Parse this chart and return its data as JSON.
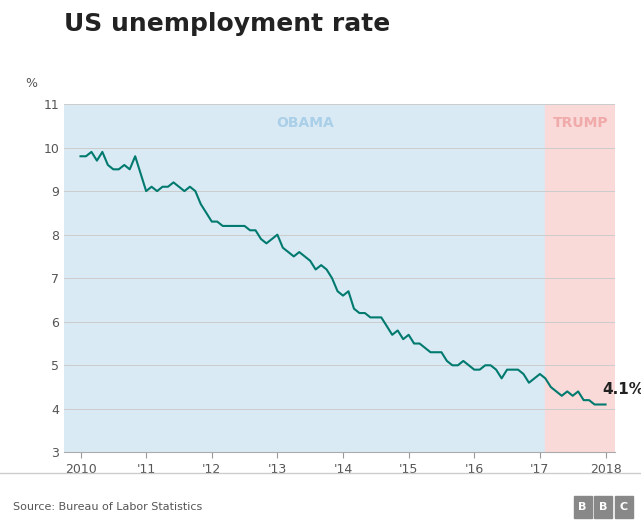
{
  "title": "US unemployment rate",
  "ylabel": "%",
  "source": "Source: Bureau of Labor Statistics",
  "bbc_logo": "BBC",
  "ylim": [
    3,
    11
  ],
  "yticks": [
    3,
    4,
    5,
    6,
    7,
    8,
    9,
    10,
    11
  ],
  "obama_label": "OBAMA",
  "trump_label": "TRUMP",
  "obama_color": "#daeaf5",
  "trump_color": "#fad9d9",
  "obama_label_color": "#aacfe8",
  "trump_label_color": "#f0aaaa",
  "line_color": "#007a6e",
  "annotation_text": "4.1%",
  "annotation_color": "#222222",
  "background_color": "#ffffff",
  "obama_start": 2009.75,
  "obama_end": 2017.083,
  "trump_start": 2017.083,
  "trump_end": 2018.15,
  "data": [
    [
      2010.0,
      9.8
    ],
    [
      2010.083,
      9.8
    ],
    [
      2010.167,
      9.9
    ],
    [
      2010.25,
      9.7
    ],
    [
      2010.333,
      9.9
    ],
    [
      2010.417,
      9.6
    ],
    [
      2010.5,
      9.5
    ],
    [
      2010.583,
      9.5
    ],
    [
      2010.667,
      9.6
    ],
    [
      2010.75,
      9.5
    ],
    [
      2010.833,
      9.8
    ],
    [
      2010.917,
      9.4
    ],
    [
      2011.0,
      9.0
    ],
    [
      2011.083,
      9.1
    ],
    [
      2011.167,
      9.0
    ],
    [
      2011.25,
      9.1
    ],
    [
      2011.333,
      9.1
    ],
    [
      2011.417,
      9.2
    ],
    [
      2011.5,
      9.1
    ],
    [
      2011.583,
      9.0
    ],
    [
      2011.667,
      9.1
    ],
    [
      2011.75,
      9.0
    ],
    [
      2011.833,
      8.7
    ],
    [
      2011.917,
      8.5
    ],
    [
      2012.0,
      8.3
    ],
    [
      2012.083,
      8.3
    ],
    [
      2012.167,
      8.2
    ],
    [
      2012.25,
      8.2
    ],
    [
      2012.333,
      8.2
    ],
    [
      2012.417,
      8.2
    ],
    [
      2012.5,
      8.2
    ],
    [
      2012.583,
      8.1
    ],
    [
      2012.667,
      8.1
    ],
    [
      2012.75,
      7.9
    ],
    [
      2012.833,
      7.8
    ],
    [
      2012.917,
      7.9
    ],
    [
      2013.0,
      8.0
    ],
    [
      2013.083,
      7.7
    ],
    [
      2013.167,
      7.6
    ],
    [
      2013.25,
      7.5
    ],
    [
      2013.333,
      7.6
    ],
    [
      2013.417,
      7.5
    ],
    [
      2013.5,
      7.4
    ],
    [
      2013.583,
      7.2
    ],
    [
      2013.667,
      7.3
    ],
    [
      2013.75,
      7.2
    ],
    [
      2013.833,
      7.0
    ],
    [
      2013.917,
      6.7
    ],
    [
      2014.0,
      6.6
    ],
    [
      2014.083,
      6.7
    ],
    [
      2014.167,
      6.3
    ],
    [
      2014.25,
      6.2
    ],
    [
      2014.333,
      6.2
    ],
    [
      2014.417,
      6.1
    ],
    [
      2014.5,
      6.1
    ],
    [
      2014.583,
      6.1
    ],
    [
      2014.667,
      5.9
    ],
    [
      2014.75,
      5.7
    ],
    [
      2014.833,
      5.8
    ],
    [
      2014.917,
      5.6
    ],
    [
      2015.0,
      5.7
    ],
    [
      2015.083,
      5.5
    ],
    [
      2015.167,
      5.5
    ],
    [
      2015.25,
      5.4
    ],
    [
      2015.333,
      5.3
    ],
    [
      2015.417,
      5.3
    ],
    [
      2015.5,
      5.3
    ],
    [
      2015.583,
      5.1
    ],
    [
      2015.667,
      5.0
    ],
    [
      2015.75,
      5.0
    ],
    [
      2015.833,
      5.1
    ],
    [
      2015.917,
      5.0
    ],
    [
      2016.0,
      4.9
    ],
    [
      2016.083,
      4.9
    ],
    [
      2016.167,
      5.0
    ],
    [
      2016.25,
      5.0
    ],
    [
      2016.333,
      4.9
    ],
    [
      2016.417,
      4.7
    ],
    [
      2016.5,
      4.9
    ],
    [
      2016.583,
      4.9
    ],
    [
      2016.667,
      4.9
    ],
    [
      2016.75,
      4.8
    ],
    [
      2016.833,
      4.6
    ],
    [
      2016.917,
      4.7
    ],
    [
      2017.0,
      4.8
    ],
    [
      2017.083,
      4.7
    ],
    [
      2017.167,
      4.5
    ],
    [
      2017.25,
      4.4
    ],
    [
      2017.333,
      4.3
    ],
    [
      2017.417,
      4.4
    ],
    [
      2017.5,
      4.3
    ],
    [
      2017.583,
      4.4
    ],
    [
      2017.667,
      4.2
    ],
    [
      2017.75,
      4.2
    ],
    [
      2017.833,
      4.1
    ],
    [
      2017.917,
      4.1
    ],
    [
      2018.0,
      4.1
    ]
  ],
  "xtick_positions": [
    2010,
    2011,
    2012,
    2013,
    2014,
    2015,
    2016,
    2017,
    2018
  ],
  "xtick_labels": [
    "2010",
    "'11",
    "'12",
    "'13",
    "'14",
    "'15",
    "'16",
    "'17",
    "2018"
  ],
  "xlim": [
    2009.75,
    2018.15
  ],
  "title_fontsize": 18,
  "label_fontsize": 10,
  "tick_fontsize": 9,
  "annotation_fontsize": 11,
  "footer_line_color": "#cccccc",
  "grid_color": "#cccccc"
}
